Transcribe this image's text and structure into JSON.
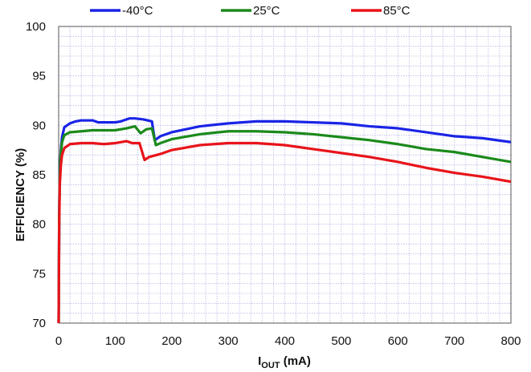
{
  "chart_data": {
    "type": "line",
    "xlabel": "I",
    "xlabel_sub": "OUT",
    "xlabel_unit": " (mA)",
    "ylabel": "EFFICIENCY (%)",
    "xlim": [
      0,
      800
    ],
    "ylim": [
      70,
      100
    ],
    "x_ticks": [
      0,
      100,
      200,
      300,
      400,
      500,
      600,
      700,
      800
    ],
    "y_ticks": [
      70,
      75,
      80,
      85,
      90,
      95,
      100
    ],
    "grid": true,
    "legend_position": "top",
    "series": [
      {
        "name": "-40°C",
        "color": "#1a24e6",
        "points": [
          [
            0,
            70
          ],
          [
            1,
            81
          ],
          [
            2,
            85.5
          ],
          [
            4,
            87.5
          ],
          [
            6,
            88.8
          ],
          [
            10,
            89.8
          ],
          [
            20,
            90.2
          ],
          [
            30,
            90.4
          ],
          [
            40,
            90.5
          ],
          [
            60,
            90.5
          ],
          [
            70,
            90.3
          ],
          [
            100,
            90.3
          ],
          [
            110,
            90.4
          ],
          [
            125,
            90.7
          ],
          [
            135,
            90.7
          ],
          [
            150,
            90.6
          ],
          [
            165,
            90.4
          ],
          [
            170,
            88.5
          ],
          [
            180,
            88.9
          ],
          [
            200,
            89.3
          ],
          [
            250,
            89.9
          ],
          [
            300,
            90.2
          ],
          [
            350,
            90.4
          ],
          [
            400,
            90.4
          ],
          [
            450,
            90.3
          ],
          [
            500,
            90.2
          ],
          [
            550,
            89.9
          ],
          [
            600,
            89.7
          ],
          [
            650,
            89.3
          ],
          [
            700,
            88.9
          ],
          [
            750,
            88.7
          ],
          [
            800,
            88.3
          ]
        ]
      },
      {
        "name": "25°C",
        "color": "#1b8a1b",
        "points": [
          [
            0,
            70
          ],
          [
            1,
            81
          ],
          [
            2,
            85
          ],
          [
            4,
            87.2
          ],
          [
            6,
            88.3
          ],
          [
            10,
            89
          ],
          [
            20,
            89.3
          ],
          [
            40,
            89.4
          ],
          [
            60,
            89.5
          ],
          [
            80,
            89.5
          ],
          [
            100,
            89.5
          ],
          [
            120,
            89.7
          ],
          [
            135,
            89.9
          ],
          [
            145,
            89.2
          ],
          [
            155,
            89.6
          ],
          [
            165,
            89.7
          ],
          [
            172,
            88
          ],
          [
            180,
            88.2
          ],
          [
            200,
            88.6
          ],
          [
            250,
            89.1
          ],
          [
            300,
            89.4
          ],
          [
            350,
            89.4
          ],
          [
            400,
            89.3
          ],
          [
            450,
            89.1
          ],
          [
            500,
            88.8
          ],
          [
            550,
            88.5
          ],
          [
            600,
            88.1
          ],
          [
            650,
            87.6
          ],
          [
            700,
            87.3
          ],
          [
            750,
            86.8
          ],
          [
            800,
            86.3
          ]
        ]
      },
      {
        "name": "85°C",
        "color": "#e8141a",
        "points": [
          [
            0,
            70
          ],
          [
            1,
            80
          ],
          [
            2,
            84
          ],
          [
            4,
            86
          ],
          [
            6,
            87
          ],
          [
            10,
            87.7
          ],
          [
            20,
            88.1
          ],
          [
            40,
            88.2
          ],
          [
            60,
            88.2
          ],
          [
            80,
            88.1
          ],
          [
            100,
            88.2
          ],
          [
            120,
            88.4
          ],
          [
            130,
            88.2
          ],
          [
            143,
            88.2
          ],
          [
            152,
            86.5
          ],
          [
            160,
            86.8
          ],
          [
            180,
            87.1
          ],
          [
            200,
            87.5
          ],
          [
            250,
            88
          ],
          [
            300,
            88.2
          ],
          [
            350,
            88.2
          ],
          [
            400,
            88
          ],
          [
            450,
            87.6
          ],
          [
            500,
            87.2
          ],
          [
            550,
            86.8
          ],
          [
            600,
            86.3
          ],
          [
            650,
            85.7
          ],
          [
            700,
            85.2
          ],
          [
            750,
            84.8
          ],
          [
            800,
            84.3
          ]
        ]
      }
    ]
  }
}
